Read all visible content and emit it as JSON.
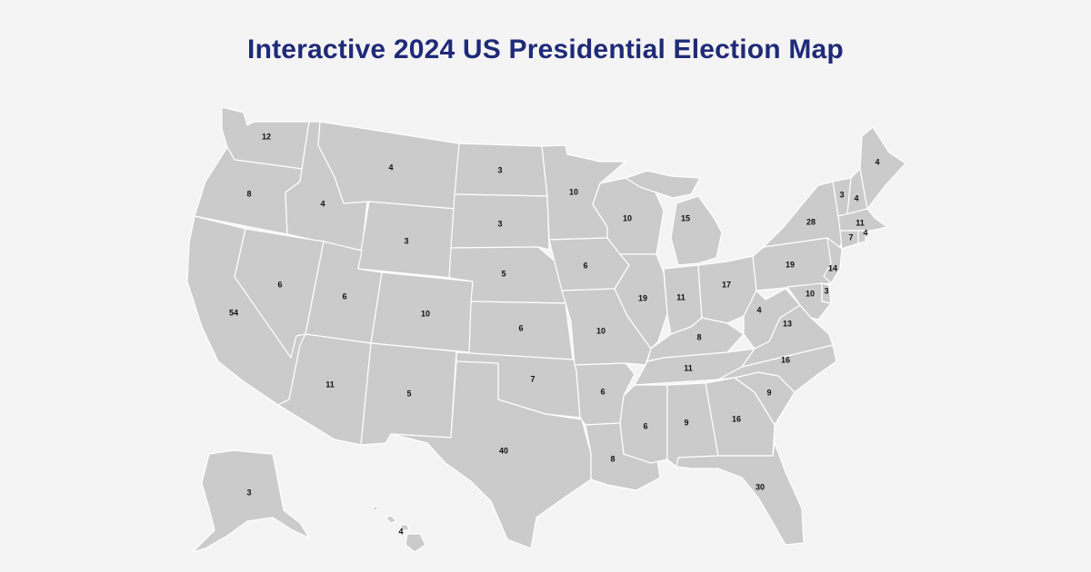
{
  "page": {
    "title": "Interactive 2024 US Presidential Election Map"
  },
  "colors": {
    "title": "#1f2a78",
    "state_fill": "#cbcbcb",
    "state_border": "#ffffff",
    "background": "#f4f4f4",
    "label": "#111111"
  },
  "states": [
    {
      "id": "WA",
      "ev": "12"
    },
    {
      "id": "OR",
      "ev": "8"
    },
    {
      "id": "CA",
      "ev": "54"
    },
    {
      "id": "ID",
      "ev": "4"
    },
    {
      "id": "NV",
      "ev": "6"
    },
    {
      "id": "MT",
      "ev": "4"
    },
    {
      "id": "WY",
      "ev": "3"
    },
    {
      "id": "UT",
      "ev": "6"
    },
    {
      "id": "AZ",
      "ev": "11"
    },
    {
      "id": "CO",
      "ev": "10"
    },
    {
      "id": "NM",
      "ev": "5"
    },
    {
      "id": "ND",
      "ev": "3"
    },
    {
      "id": "SD",
      "ev": "3"
    },
    {
      "id": "NE",
      "ev": "5"
    },
    {
      "id": "KS",
      "ev": "6"
    },
    {
      "id": "OK",
      "ev": "7"
    },
    {
      "id": "TX",
      "ev": "40"
    },
    {
      "id": "MN",
      "ev": "10"
    },
    {
      "id": "IA",
      "ev": "6"
    },
    {
      "id": "MO",
      "ev": "10"
    },
    {
      "id": "AR",
      "ev": "6"
    },
    {
      "id": "LA",
      "ev": "8"
    },
    {
      "id": "WI",
      "ev": "10"
    },
    {
      "id": "IL",
      "ev": "19"
    },
    {
      "id": "MI",
      "ev": "15"
    },
    {
      "id": "IN",
      "ev": "11"
    },
    {
      "id": "OH",
      "ev": "17"
    },
    {
      "id": "KY",
      "ev": "8"
    },
    {
      "id": "TN",
      "ev": "11"
    },
    {
      "id": "MS",
      "ev": "6"
    },
    {
      "id": "AL",
      "ev": "9"
    },
    {
      "id": "GA",
      "ev": "16"
    },
    {
      "id": "FL",
      "ev": "30"
    },
    {
      "id": "SC",
      "ev": "9"
    },
    {
      "id": "NC",
      "ev": "16"
    },
    {
      "id": "VA",
      "ev": "13"
    },
    {
      "id": "WV",
      "ev": "4"
    },
    {
      "id": "PA",
      "ev": "19"
    },
    {
      "id": "NY",
      "ev": "28"
    },
    {
      "id": "VT",
      "ev": "3"
    },
    {
      "id": "NH",
      "ev": "4"
    },
    {
      "id": "ME",
      "ev": "4"
    },
    {
      "id": "MA",
      "ev": "11"
    },
    {
      "id": "CT",
      "ev": "7"
    },
    {
      "id": "RI",
      "ev": "4"
    },
    {
      "id": "NJ",
      "ev": "14"
    },
    {
      "id": "DE",
      "ev": "3"
    },
    {
      "id": "MD",
      "ev": "10"
    },
    {
      "id": "AK",
      "ev": "3"
    },
    {
      "id": "HI",
      "ev": "4"
    }
  ]
}
